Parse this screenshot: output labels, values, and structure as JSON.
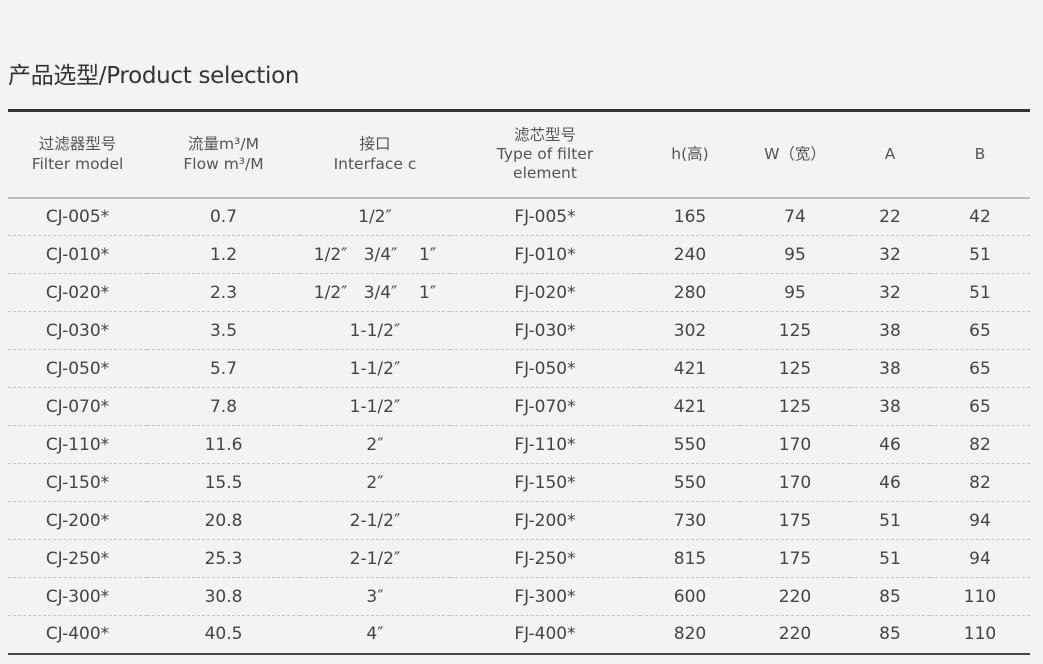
{
  "title": "产品选型/Product selection",
  "columns": [
    {
      "zh": "过滤器型号",
      "en": "Filter model"
    },
    {
      "zh": "流量m³/M",
      "en": "Flow m³/M"
    },
    {
      "zh": "接口",
      "en": "Interface c"
    },
    {
      "zh": "滤芯型号",
      "en": "Type of filter element"
    },
    {
      "zh": "",
      "en": "h(高)"
    },
    {
      "zh": "",
      "en": "W（宽）"
    },
    {
      "zh": "",
      "en": "A"
    },
    {
      "zh": "",
      "en": "B"
    }
  ],
  "rows": [
    [
      "CJ-005*",
      "0.7",
      "1/2″",
      "FJ-005*",
      "165",
      "74",
      "22",
      "42"
    ],
    [
      "CJ-010*",
      "1.2",
      "1/2″   3/4″    1″",
      "FJ-010*",
      "240",
      "95",
      "32",
      "51"
    ],
    [
      "CJ-020*",
      "2.3",
      "1/2″   3/4″    1″",
      "FJ-020*",
      "280",
      "95",
      "32",
      "51"
    ],
    [
      "CJ-030*",
      "3.5",
      "1-1/2″",
      "FJ-030*",
      "302",
      "125",
      "38",
      "65"
    ],
    [
      "CJ-050*",
      "5.7",
      "1-1/2″",
      "FJ-050*",
      "421",
      "125",
      "38",
      "65"
    ],
    [
      "CJ-070*",
      "7.8",
      "1-1/2″",
      "FJ-070*",
      "421",
      "125",
      "38",
      "65"
    ],
    [
      "CJ-110*",
      "11.6",
      "2″",
      "FJ-110*",
      "550",
      "170",
      "46",
      "82"
    ],
    [
      "CJ-150*",
      "15.5",
      "2″",
      "FJ-150*",
      "550",
      "170",
      "46",
      "82"
    ],
    [
      "CJ-200*",
      "20.8",
      "2-1/2″",
      "FJ-200*",
      "730",
      "175",
      "51",
      "94"
    ],
    [
      "CJ-250*",
      "25.3",
      "2-1/2″",
      "FJ-250*",
      "815",
      "175",
      "51",
      "94"
    ],
    [
      "CJ-300*",
      "30.8",
      "3″",
      "FJ-300*",
      "600",
      "220",
      "85",
      "110"
    ],
    [
      "CJ-400*",
      "40.5",
      "4″",
      "FJ-400*",
      "820",
      "220",
      "85",
      "110"
    ]
  ]
}
